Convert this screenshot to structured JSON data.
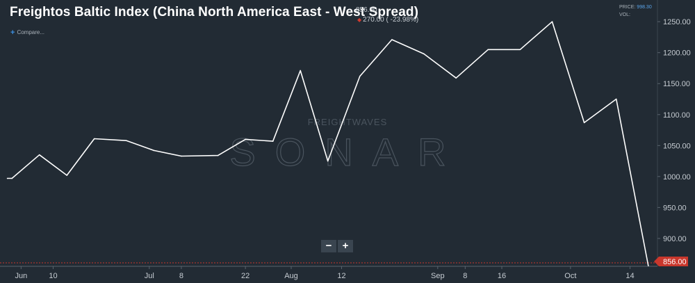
{
  "header": {
    "title": "Freightos Baltic Index (China North America East - West Spread)",
    "last_value": "856.00",
    "change_text": "270.00 ( -23.98%)",
    "compare_label": "Compare...",
    "price_label": "PRICE:",
    "price_value": "998.30",
    "vol_label": "VOL:"
  },
  "zoom": {
    "minus_label": "−",
    "plus_label": "+"
  },
  "watermark": {
    "brand": "FREIGHTWAVES",
    "product": "SONAR"
  },
  "colors": {
    "background": "#222b34",
    "line": "#ffffff",
    "last_tag": "#c9372c",
    "grid": "#2e3842",
    "watermark": "#4a545e"
  },
  "chart_data": {
    "type": "line",
    "title": "Freightos Baltic Index (China North America East - West Spread)",
    "xlabel": "",
    "ylabel": "",
    "x_range": [
      "2019-05-30",
      "2019-10-20"
    ],
    "ylim": [
      855,
      1285
    ],
    "y_ticks": [
      900,
      950,
      1000,
      1050,
      1100,
      1150,
      1200,
      1250
    ],
    "y_tick_labels": [
      "900.00",
      "950.00",
      "1000.00",
      "1050.00",
      "1100.00",
      "1150.00",
      "1200.00",
      "1250.00"
    ],
    "x_ticks": [
      {
        "date": "2019-06-03",
        "label": "Jun"
      },
      {
        "date": "2019-06-10",
        "label": "10"
      },
      {
        "date": "2019-07-01",
        "label": "Jul"
      },
      {
        "date": "2019-07-08",
        "label": "8"
      },
      {
        "date": "2019-07-22",
        "label": "22"
      },
      {
        "date": "2019-08-01",
        "label": "Aug"
      },
      {
        "date": "2019-08-12",
        "label": "12"
      },
      {
        "date": "2019-09-02",
        "label": "Sep"
      },
      {
        "date": "2019-09-08",
        "label": "8"
      },
      {
        "date": "2019-09-16",
        "label": "16"
      },
      {
        "date": "2019-10-01",
        "label": "Oct"
      },
      {
        "date": "2019-10-14",
        "label": "14"
      }
    ],
    "grid": false,
    "last_value_label": "856.00",
    "series": [
      {
        "name": "",
        "points": [
          {
            "x": "2019-05-31",
            "y": 997
          },
          {
            "x": "2019-06-01",
            "y": 997
          },
          {
            "x": "2019-06-07",
            "y": 1035
          },
          {
            "x": "2019-06-13",
            "y": 1002
          },
          {
            "x": "2019-06-19",
            "y": 1061
          },
          {
            "x": "2019-06-26",
            "y": 1058
          },
          {
            "x": "2019-07-02",
            "y": 1042
          },
          {
            "x": "2019-07-08",
            "y": 1033
          },
          {
            "x": "2019-07-16",
            "y": 1034
          },
          {
            "x": "2019-07-22",
            "y": 1060
          },
          {
            "x": "2019-07-28",
            "y": 1057
          },
          {
            "x": "2019-08-03",
            "y": 1171
          },
          {
            "x": "2019-08-09",
            "y": 1025
          },
          {
            "x": "2019-08-16",
            "y": 1162
          },
          {
            "x": "2019-08-23",
            "y": 1221
          },
          {
            "x": "2019-08-30",
            "y": 1198
          },
          {
            "x": "2019-09-06",
            "y": 1159
          },
          {
            "x": "2019-09-13",
            "y": 1205
          },
          {
            "x": "2019-09-20",
            "y": 1205
          },
          {
            "x": "2019-09-27",
            "y": 1250
          },
          {
            "x": "2019-10-04",
            "y": 1087
          },
          {
            "x": "2019-10-11",
            "y": 1125
          },
          {
            "x": "2019-10-18",
            "y": 856
          }
        ]
      }
    ]
  }
}
